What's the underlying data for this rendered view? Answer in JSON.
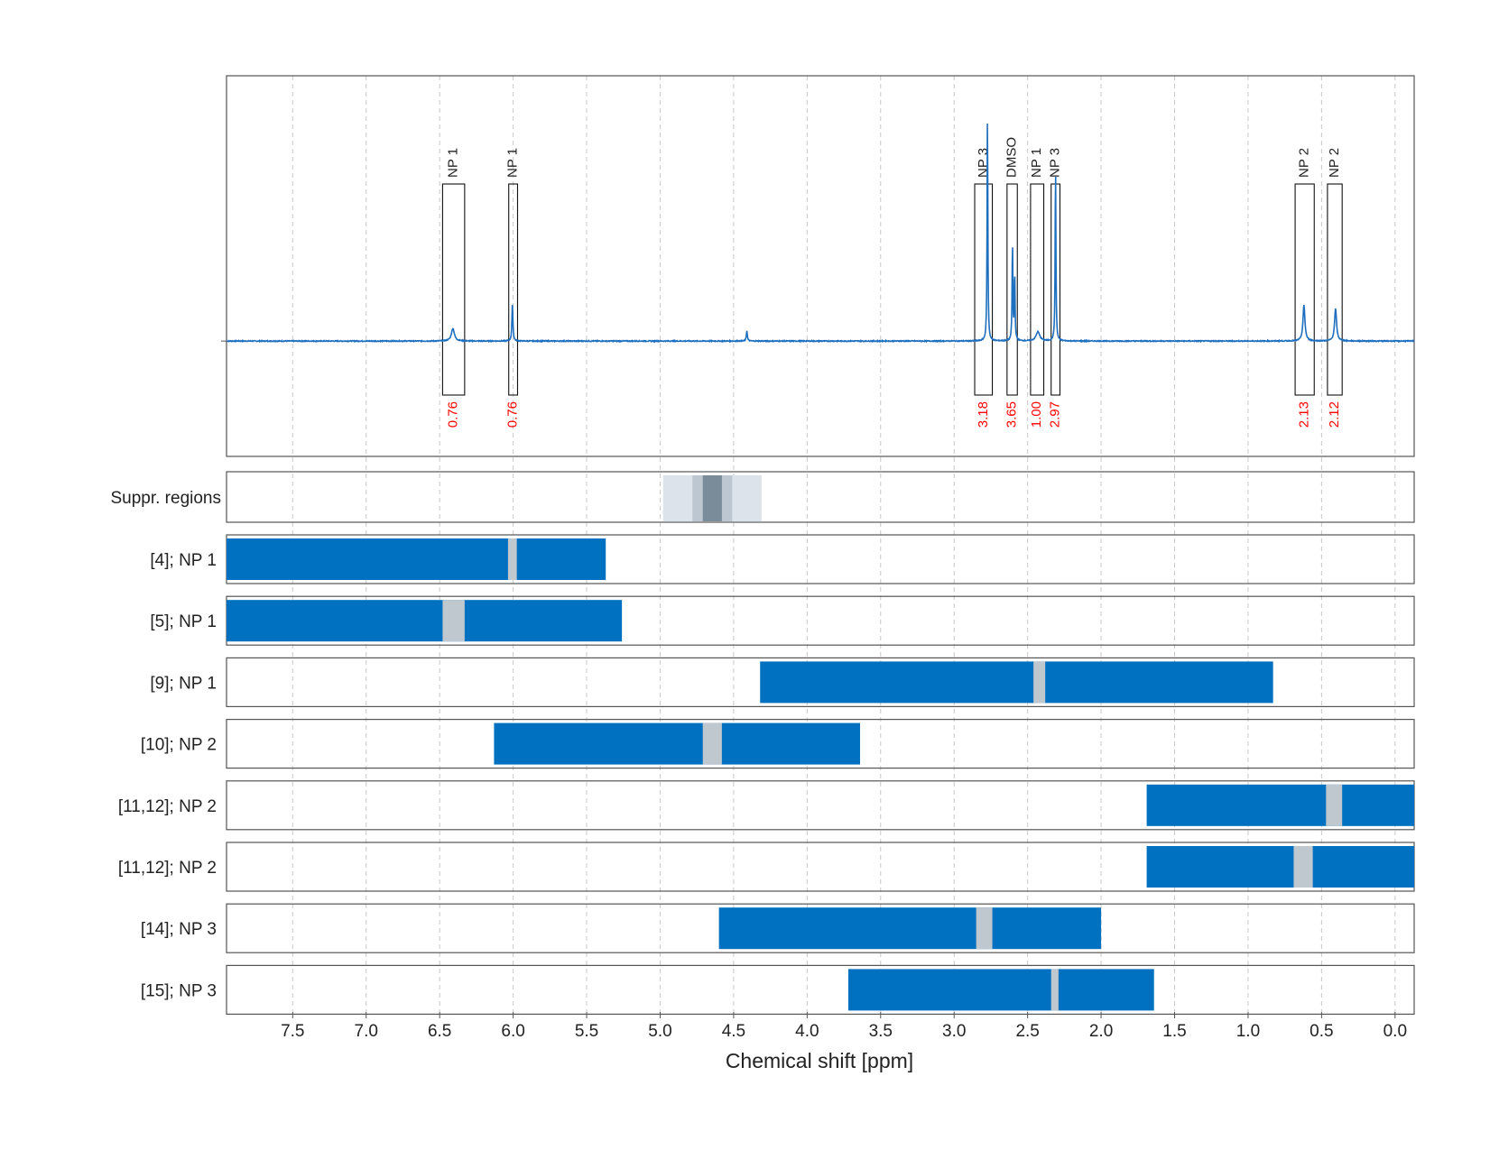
{
  "chart_data": {
    "type": "nmr-spectrum",
    "xlabel": "Chemical shift [ppm]",
    "xlim": [
      7.95,
      -0.13
    ],
    "x_reversed": true,
    "xticks": [
      7.5,
      7.0,
      6.5,
      6.0,
      5.5,
      5.0,
      4.5,
      4.0,
      3.5,
      3.0,
      2.5,
      2.0,
      1.5,
      1.0,
      0.5,
      0.0
    ],
    "xtick_labels": [
      "7.5",
      "7.0",
      "6.5",
      "6.0",
      "5.5",
      "5.0",
      "4.5",
      "4.0",
      "3.5",
      "3.0",
      "2.5",
      "2.0",
      "1.5",
      "1.0",
      "0.5",
      "0.0"
    ],
    "grid": "vertical dashed",
    "colors": {
      "spectrum": "#1f6fbf",
      "region": "#0070c0",
      "window": "#c0c8cf",
      "integral": "#ff0000",
      "frame": "#555555"
    },
    "spectrum": {
      "baseline": 0,
      "ylim": [
        -0.5,
        1.15
      ],
      "peaks": [
        {
          "ppm": 6.41,
          "height": 0.055,
          "width": 0.012
        },
        {
          "ppm": 6.005,
          "height": 0.16,
          "width": 0.004
        },
        {
          "ppm": 4.41,
          "height": 0.045,
          "width": 0.004
        },
        {
          "ppm": 2.773,
          "height": 1.0,
          "width": 0.003
        },
        {
          "ppm": 2.603,
          "height": 0.43,
          "width": 0.003
        },
        {
          "ppm": 2.588,
          "height": 0.3,
          "width": 0.003
        },
        {
          "ppm": 2.43,
          "height": 0.04,
          "width": 0.015
        },
        {
          "ppm": 2.31,
          "height": 0.77,
          "width": 0.003
        },
        {
          "ppm": 0.62,
          "height": 0.155,
          "width": 0.008
        },
        {
          "ppm": 0.405,
          "height": 0.14,
          "width": 0.008
        }
      ],
      "annotations": [
        {
          "label": "NP 1",
          "integral": "0.76",
          "from": 6.48,
          "to": 6.33
        },
        {
          "label": "NP 1",
          "integral": "0.76",
          "from": 6.03,
          "to": 5.97
        },
        {
          "label": "NP 3",
          "integral": "3.18",
          "from": 2.86,
          "to": 2.74
        },
        {
          "label": "DMSO",
          "integral": "3.65",
          "from": 2.64,
          "to": 2.57
        },
        {
          "label": "NP 1",
          "integral": "1.00",
          "from": 2.48,
          "to": 2.39
        },
        {
          "label": "NP 3",
          "integral": "2.97",
          "from": 2.34,
          "to": 2.28
        },
        {
          "label": "NP 2",
          "integral": "2.13",
          "from": 0.68,
          "to": 0.55
        },
        {
          "label": "NP 2",
          "integral": "2.12",
          "from": 0.46,
          "to": 0.36
        }
      ]
    },
    "suppression": {
      "label": "Suppr. regions",
      "bands": [
        {
          "from": 4.98,
          "to": 4.31,
          "shade": "#dce3ea"
        },
        {
          "from": 4.78,
          "to": 4.51,
          "shade": "#bcc7d1"
        },
        {
          "from": 4.71,
          "to": 4.58,
          "shade": "#7a8b99"
        }
      ]
    },
    "rows": [
      {
        "label": "[4]; NP 1",
        "from": 7.95,
        "to": 5.37,
        "window_from": 6.035,
        "window_to": 5.975
      },
      {
        "label": "[5]; NP 1",
        "from": 7.95,
        "to": 5.26,
        "window_from": 6.48,
        "window_to": 6.33
      },
      {
        "label": "[9]; NP 1",
        "from": 4.32,
        "to": 0.83,
        "window_from": 2.46,
        "window_to": 2.38
      },
      {
        "label": "[10]; NP 2",
        "from": 6.13,
        "to": 3.64,
        "window_from": 4.71,
        "window_to": 4.58
      },
      {
        "label": "[11,12]; NP 2",
        "from": 1.69,
        "to": -0.13,
        "window_from": 0.47,
        "window_to": 0.36
      },
      {
        "label": "[11,12]; NP 2",
        "from": 1.69,
        "to": -0.13,
        "window_from": 0.69,
        "window_to": 0.56
      },
      {
        "label": "[14]; NP 3",
        "from": 4.6,
        "to": 2.0,
        "window_from": 2.85,
        "window_to": 2.74
      },
      {
        "label": "[15]; NP 3",
        "from": 3.72,
        "to": 1.64,
        "window_from": 2.34,
        "window_to": 2.29
      }
    ]
  }
}
